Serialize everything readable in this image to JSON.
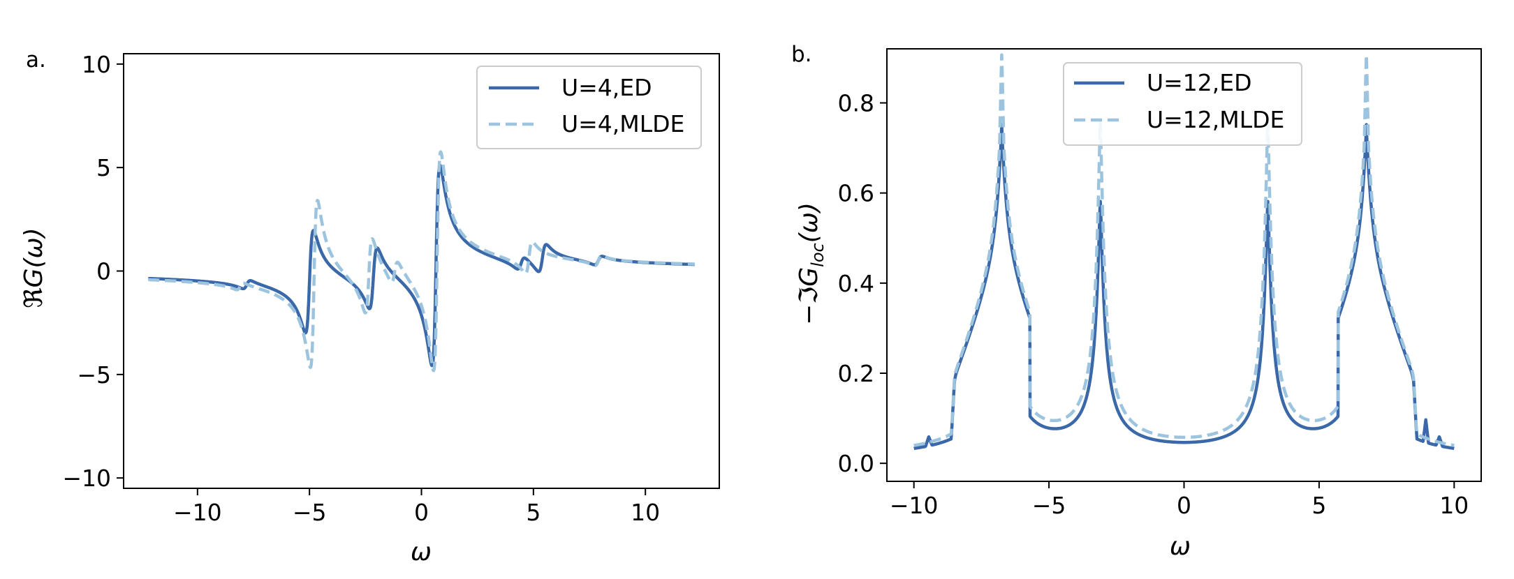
{
  "chart_data": [
    {
      "panel_label": "a.",
      "type": "line",
      "title": "",
      "xlabel": "ω",
      "ylabel": "ℜG(ω)",
      "xlim": [
        -13.3,
        13.3
      ],
      "ylim": [
        -10.5,
        10.5
      ],
      "xticks": [
        -10,
        -5,
        0,
        5,
        10
      ],
      "yticks": [
        -10,
        -5,
        0,
        5,
        10
      ],
      "xtick_labels": [
        "−10",
        "−5",
        "0",
        "5",
        "10"
      ],
      "ytick_labels": [
        "−10",
        "−5",
        "0",
        "5",
        "10"
      ],
      "grid": false,
      "legend_position": "top-right",
      "x_range": [
        -12.2,
        12.2
      ],
      "series": [
        {
          "name": "U=4,ED",
          "style": "solid",
          "color": "#3a68a8",
          "poles": [
            {
              "w": -5.0,
              "a": 0.9
            },
            {
              "w": -2.15,
              "a": 0.55
            },
            {
              "w": 0.65,
              "a": 1.75
            },
            {
              "w": 5.4,
              "a": 0.25
            },
            {
              "w": 4.45,
              "a": 0.12
            },
            {
              "w": -7.8,
              "a": 0.08
            },
            {
              "w": 7.9,
              "a": 0.08
            }
          ],
          "broadening": 0.18
        },
        {
          "name": "U=4,MLDE",
          "style": "dashed",
          "color": "#9cc4de",
          "poles": [
            {
              "w": -4.8,
              "a": 1.3
            },
            {
              "w": -2.35,
              "a": 0.6
            },
            {
              "w": -1.2,
              "a": 0.2
            },
            {
              "w": 0.7,
              "a": 1.7
            },
            {
              "w": 4.8,
              "a": 0.25
            },
            {
              "w": 7.9,
              "a": 0.08
            },
            {
              "w": -8.1,
              "a": 0.06
            }
          ],
          "broadening": 0.16
        }
      ]
    },
    {
      "panel_label": "b.",
      "type": "line",
      "title": "",
      "xlabel": "ω",
      "ylabel": "−ℑG_loc(ω)",
      "ylabel_main": "−ℑG",
      "ylabel_sub": "loc",
      "ylabel_tail": "(ω)",
      "xlim": [
        -11.0,
        11.0
      ],
      "ylim": [
        -0.04,
        0.92
      ],
      "xticks": [
        -10,
        -5,
        0,
        5,
        10
      ],
      "yticks": [
        0.0,
        0.2,
        0.4,
        0.6,
        0.8
      ],
      "xtick_labels": [
        "−10",
        "−5",
        "0",
        "5",
        "10"
      ],
      "ytick_labels": [
        "0.0",
        "0.2",
        "0.4",
        "0.6",
        "0.8"
      ],
      "grid": false,
      "legend_position": "top-center",
      "x_range": [
        -10,
        10
      ],
      "series": [
        {
          "name": "U=12,ED",
          "style": "solid",
          "color": "#3a68a8",
          "peak_height_outer": 0.73,
          "peak_height_inner": 0.55,
          "peaks_at": [
            -6.75,
            -3.1,
            3.1,
            6.75
          ]
        },
        {
          "name": "U=12,MLDE",
          "style": "dashed",
          "color": "#9cc4de",
          "peak_height_outer": 0.88,
          "peak_height_inner": 0.72,
          "peaks_at": [
            -6.75,
            -3.1,
            3.1,
            6.75
          ]
        }
      ]
    }
  ]
}
